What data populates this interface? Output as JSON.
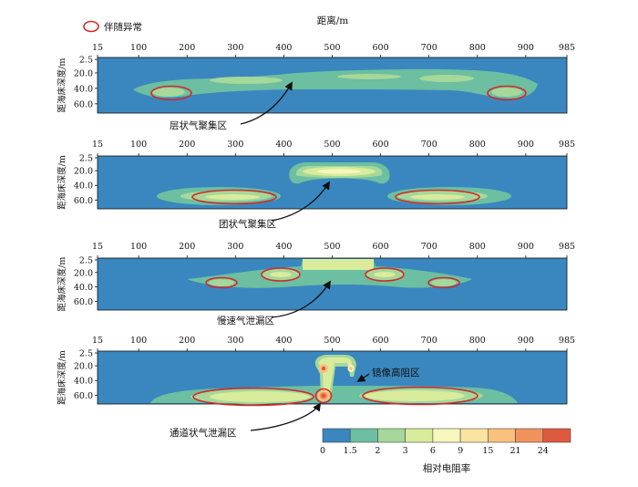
{
  "legend_top": {
    "label": "伴随异常",
    "color": "#d62828"
  },
  "top_axis_title": "距离/m",
  "x_ticks": [
    "15",
    "100",
    "200",
    "300",
    "400",
    "500",
    "600",
    "700",
    "800",
    "900",
    "985"
  ],
  "y_ticks": [
    "2.5",
    "20.0",
    "40.0",
    "60.0"
  ],
  "y_axis_title": "距海床深度/m",
  "panels": [
    {
      "annotation": "层状气聚集区"
    },
    {
      "annotation": "团状气聚集区"
    },
    {
      "annotation": "慢速气泄漏区"
    },
    {
      "annotation": "通道状气泄漏区",
      "annotation2": "镜像高阻区"
    }
  ],
  "colorbar": {
    "title": "相对电阻率",
    "labels": [
      "0",
      "1.5",
      "2",
      "3",
      "6",
      "9",
      "15",
      "21",
      "24"
    ],
    "colors": [
      "#3a87bf",
      "#6cbfa0",
      "#a5d89a",
      "#d8ec9c",
      "#f7f6bc",
      "#fbe3a2",
      "#f9c07e",
      "#f1925d",
      "#de5a3e"
    ]
  }
}
